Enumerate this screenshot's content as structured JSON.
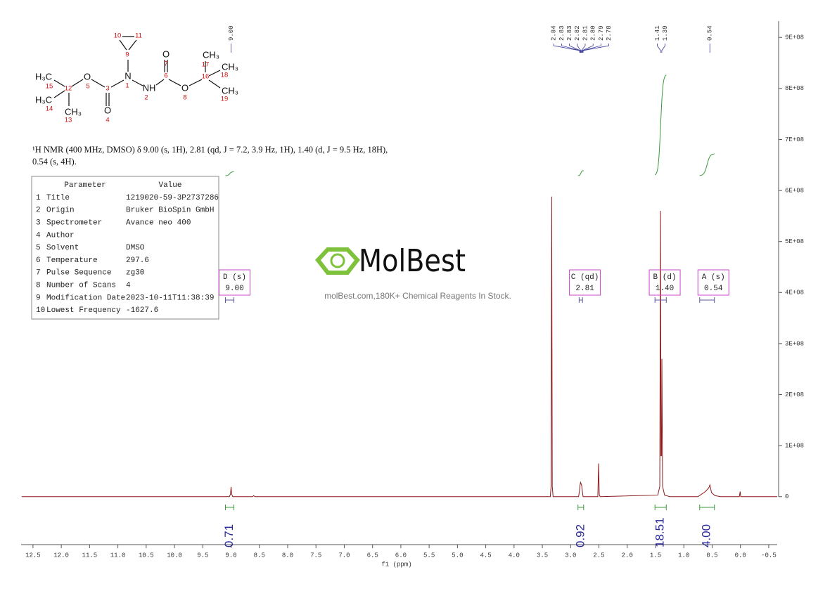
{
  "chart_data": {
    "type": "line",
    "x_label": "f1 (ppm)",
    "x": [
      12.7,
      9.03,
      9.01,
      9.0,
      8.99,
      8.97,
      8.62,
      8.6,
      8.58,
      3.36,
      3.345,
      3.335,
      3.325,
      3.31,
      2.86,
      2.845,
      2.835,
      2.825,
      2.815,
      2.805,
      2.795,
      2.78,
      2.52,
      2.505,
      2.495,
      2.48,
      1.46,
      1.425,
      1.412,
      1.405,
      1.395,
      1.388,
      1.375,
      1.34,
      1.25,
      0.75,
      0.62,
      0.56,
      0.54,
      0.51,
      0.45,
      0.35,
      0.02,
      0.005,
      -0.005,
      -0.65
    ],
    "values": [
      0,
      0,
      5000000,
      19000000,
      5000000,
      0,
      0,
      2000000,
      0,
      0,
      20000000,
      588000000,
      20000000,
      0,
      0,
      10000000,
      22000000,
      28000000,
      25000000,
      22000000,
      12000000,
      0,
      0,
      65000000,
      5000000,
      0,
      3000000,
      20000000,
      560000000,
      80000000,
      80000000,
      270000000,
      20000000,
      3000000,
      0,
      0,
      10000000,
      17000000,
      23000000,
      8000000,
      2000000,
      0,
      0,
      10000000,
      0,
      0
    ],
    "color": "#8b1a1a",
    "xlim": [
      12.71,
      -0.65
    ],
    "ylim": [
      -94000000,
      932000000
    ],
    "xticks": [
      12.5,
      {
        "value": 12,
        "label": "12.0"
      },
      11.5,
      {
        "value": 11,
        "label": "11.0"
      },
      10.5,
      {
        "value": 10,
        "label": "10.0"
      },
      9.5,
      {
        "value": 9,
        "label": "9.0"
      },
      8.5,
      {
        "value": 8,
        "label": "8.0"
      },
      7.5,
      {
        "value": 7,
        "label": "7.0"
      },
      6.5,
      {
        "value": 6,
        "label": "6.0"
      },
      5.5,
      {
        "value": 5,
        "label": "5.0"
      },
      4.5,
      {
        "value": 4,
        "label": "4.0"
      },
      3.5,
      {
        "value": 3,
        "label": "3.0"
      },
      2.5,
      {
        "value": 2,
        "label": "2.0"
      },
      1.5,
      {
        "value": 1,
        "label": "1.0"
      },
      0.5,
      {
        "value": 0,
        "label": "0.0"
      },
      -0.5
    ],
    "yticks": [
      0,
      {
        "value": 100000000,
        "label": "1E+08"
      },
      {
        "value": 200000000,
        "label": "2E+08"
      },
      {
        "value": 300000000,
        "label": "3E+08"
      },
      {
        "value": 400000000,
        "label": "4E+08"
      },
      {
        "value": 500000000,
        "label": "5E+08"
      },
      {
        "value": 600000000,
        "label": "6E+08"
      },
      {
        "value": 700000000,
        "label": "7E+08"
      },
      {
        "value": 800000000,
        "label": "8E+08"
      },
      {
        "value": 900000000,
        "label": "9E+08"
      }
    ],
    "peak_labels": [
      {
        "value": 9.0,
        "label": "9.00"
      },
      {
        "value": 2.84,
        "label": "2.84"
      },
      {
        "value": 2.83,
        "label": "2.83"
      },
      {
        "value": 2.83,
        "label": "2.83"
      },
      {
        "value": 2.82,
        "label": "2.82"
      },
      {
        "value": 2.81,
        "label": "2.81"
      },
      {
        "value": 2.8,
        "label": "2.80"
      },
      {
        "value": 2.79,
        "label": "2.79"
      },
      {
        "value": 2.78,
        "label": "2.78"
      },
      {
        "value": 1.41,
        "label": "1.41"
      },
      {
        "value": 1.39,
        "label": "1.39"
      },
      {
        "value": 0.54,
        "label": "0.54"
      }
    ],
    "peak_label_color": "#3a3a9a",
    "integrals": {
      "ranges": [
        [
          9.1,
          8.95
        ],
        [
          2.87,
          2.77
        ],
        [
          1.51,
          1.31
        ],
        [
          0.72,
          0.46
        ]
      ],
      "values": [
        0.71,
        0.92,
        18.51,
        4
      ],
      "value_labels": [
        "0.71",
        "0.92",
        "18.51",
        "4.00"
      ],
      "color": "#3a9a3a",
      "label_color": "#2a2a9a"
    },
    "multiplets": [
      {
        "name": "D (s)",
        "shift": {
          "value": 9.0,
          "label": "9.00"
        },
        "range": [
          9.1,
          8.95
        ]
      },
      {
        "name": "C (qd)",
        "shift": {
          "value": 2.81,
          "label": "2.81"
        },
        "range": [
          2.85,
          2.79
        ]
      },
      {
        "name": "B (d)",
        "shift": {
          "value": 1.4,
          "label": "1.40"
        },
        "range": [
          1.51,
          1.31
        ]
      },
      {
        "name": "A (s)",
        "shift": {
          "value": 0.54,
          "label": "0.54"
        },
        "range": [
          0.72,
          0.46
        ]
      }
    ],
    "multiplet_color": "#cc44cc",
    "grid": false
  },
  "structure": {
    "labels": [
      "10",
      "11",
      "9",
      "N",
      "1",
      "O",
      "7",
      "6",
      "NH",
      "2",
      "O",
      "8",
      "16",
      "CH₃",
      "17",
      "CH₃",
      "18",
      "CH₃",
      "19",
      "H₃C",
      "15",
      "12",
      "O",
      "5",
      "3",
      "O",
      "4",
      "H₃C",
      "14",
      "CH₃",
      "13"
    ]
  },
  "description": [
    "¹H NMR (400 MHz, DMSO) δ 9.00 (s, 1H), 2.81 (qd, J = 7.2, 3.9 Hz, 1H), 1.40 (d, J = 9.5 Hz, 18H),",
    "0.54 (s, 4H)."
  ],
  "parameter_table": {
    "header": [
      "Parameter",
      "Value"
    ],
    "rows": [
      [
        1,
        "Title",
        "1219020-59-3P2737286"
      ],
      [
        2,
        "Origin",
        "Bruker BioSpin GmbH"
      ],
      [
        3,
        "Spectrometer",
        "Avance neo 400"
      ],
      [
        4,
        "Author"
      ],
      [
        5,
        "Solvent",
        "DMSO"
      ],
      [
        6,
        "Temperature",
        "297.6"
      ],
      [
        7,
        "Pulse Sequence",
        "zg30"
      ],
      [
        8,
        "Number of Scans",
        "4"
      ],
      [
        9,
        "Modification Date",
        "2023-10-11T11:38:39"
      ],
      [
        10,
        "Lowest Frequency",
        "-1627.6"
      ]
    ]
  },
  "watermark": {
    "logo": "MolBest",
    "text": "molBest.com,180K+ Chemical Reagents In Stock."
  }
}
